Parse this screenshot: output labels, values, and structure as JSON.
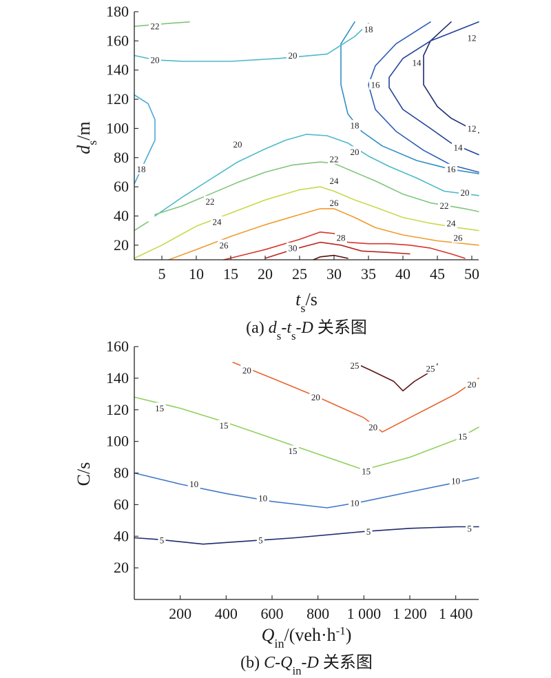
{
  "chart_data": [
    {
      "type": "contour",
      "xlabel": "t_s/s",
      "ylabel": "d_s/m",
      "caption": "(a) d_s-t_s-D 关系图",
      "xlim": [
        1,
        51
      ],
      "ylim": [
        10,
        180
      ],
      "x_ticks": [
        "5",
        "10",
        "15",
        "20",
        "25",
        "30",
        "35",
        "40",
        "45",
        "50"
      ],
      "y_ticks": [
        "20",
        "40",
        "60",
        "80",
        "100",
        "120",
        "140",
        "160",
        "180"
      ],
      "levels": [
        {
          "level": "12",
          "color": "#1d2a6e",
          "lines": [
            [
              [
                47,
                173
              ],
              [
                44,
                160
              ],
              [
                43,
                150
              ],
              [
                43,
                130
              ],
              [
                45,
                115
              ],
              [
                47,
                107
              ],
              [
                51,
                97
              ]
            ]
          ],
          "labels": [
            [
              50,
              162
            ],
            [
              50,
              100
            ]
          ]
        },
        {
          "level": "14",
          "color": "#23409a",
          "lines": [
            [
              [
                51,
                173
              ],
              [
                44,
                160
              ],
              [
                40,
                148
              ],
              [
                38,
                135
              ],
              [
                38,
                128
              ],
              [
                40,
                113
              ],
              [
                44,
                100
              ],
              [
                47,
                90
              ],
              [
                51,
                82
              ]
            ]
          ],
          "labels": [
            [
              42,
              145
            ],
            [
              48,
              87
            ]
          ]
        },
        {
          "level": "16",
          "color": "#2c5fb6",
          "lines": [
            [
              [
                44,
                173
              ],
              [
                39,
                158
              ],
              [
                36,
                143
              ],
              [
                35,
                130
              ],
              [
                36,
                113
              ],
              [
                39,
                98
              ],
              [
                43,
                85
              ],
              [
                47,
                75
              ],
              [
                51,
                70
              ]
            ]
          ],
          "labels": [
            [
              36,
              130
            ],
            [
              47,
              72
            ]
          ]
        },
        {
          "level": "18",
          "color": "#2f8fc4",
          "lines": [
            [
              [
                33,
                173
              ],
              [
                31,
                158
              ],
              [
                31,
                145
              ],
              [
                31,
                130
              ],
              [
                32,
                110
              ],
              [
                34,
                98
              ],
              [
                37,
                88
              ],
              [
                42,
                78
              ],
              [
                47,
                72
              ],
              [
                51,
                69
              ]
            ]
          ],
          "labels": [
            [
              35,
              168
            ],
            [
              33,
              102
            ]
          ]
        },
        {
          "level": "18",
          "color": "#4aa9d6",
          "lines": [
            [
              [
                1,
                123
              ],
              [
                3,
                117
              ],
              [
                4,
                106
              ],
              [
                4,
                92
              ],
              [
                3,
                82
              ],
              [
                1,
                62
              ]
            ]
          ],
          "labels": [
            [
              2,
              72
            ]
          ]
        },
        {
          "level": "20",
          "color": "#4cb9c9",
          "lines": [
            [
              [
                1,
                150
              ],
              [
                4,
                147
              ],
              [
                8,
                146
              ],
              [
                15,
                146
              ],
              [
                22,
                148
              ],
              [
                29,
                151
              ],
              [
                31,
                157
              ],
              [
                33,
                163
              ],
              [
                35,
                172
              ]
            ]
          ],
          "labels": [
            [
              4,
              147
            ],
            [
              24,
              150
            ]
          ]
        },
        {
          "level": "20",
          "color": "#4cb9c9",
          "lines": [
            [
              [
                4,
                40
              ],
              [
                8,
                53
              ],
              [
                12,
                65
              ],
              [
                16,
                77
              ],
              [
                20,
                86
              ],
              [
                23,
                92
              ],
              [
                26,
                96
              ],
              [
                29,
                95
              ],
              [
                32,
                90
              ],
              [
                35,
                81
              ],
              [
                38,
                74
              ],
              [
                42,
                66
              ],
              [
                46,
                57
              ],
              [
                51,
                54
              ]
            ]
          ],
          "labels": [
            [
              16,
              89
            ],
            [
              33,
              84
            ],
            [
              49,
              56
            ]
          ]
        },
        {
          "level": "22",
          "color": "#7ec57a",
          "lines": [
            [
              [
                1,
                170
              ],
              [
                6,
                172
              ],
              [
                9,
                173
              ]
            ]
          ],
          "labels": [
            [
              4,
              170
            ]
          ]
        },
        {
          "level": "22",
          "color": "#7ec57a",
          "lines": [
            [
              [
                1,
                30
              ],
              [
                3,
                36
              ]
            ],
            [
              [
                4,
                41
              ],
              [
                8,
                47
              ],
              [
                12,
                55
              ],
              [
                16,
                63
              ],
              [
                20,
                70
              ],
              [
                24,
                75
              ],
              [
                28,
                77
              ],
              [
                30,
                76
              ],
              [
                32,
                72
              ],
              [
                34,
                68
              ],
              [
                36,
                64
              ],
              [
                40,
                55
              ],
              [
                44,
                49
              ],
              [
                49,
                45
              ],
              [
                51,
                43
              ]
            ]
          ],
          "labels": [
            [
              12,
              50
            ],
            [
              30,
              79
            ],
            [
              46,
              47
            ]
          ]
        },
        {
          "level": "24",
          "color": "#c9d84a",
          "lines": [
            [
              [
                1,
                11
              ],
              [
                5,
                20
              ],
              [
                10,
                33
              ],
              [
                15,
                42
              ],
              [
                20,
                51
              ],
              [
                25,
                58
              ],
              [
                28,
                60
              ],
              [
                30,
                57
              ],
              [
                33,
                51
              ],
              [
                36,
                46
              ],
              [
                40,
                39
              ],
              [
                44,
                35
              ],
              [
                48,
                32
              ],
              [
                51,
                30
              ]
            ]
          ],
          "labels": [
            [
              13,
              36
            ],
            [
              30,
              64
            ],
            [
              47,
              35
            ]
          ]
        },
        {
          "level": "26",
          "color": "#f09a2c",
          "lines": [
            [
              [
                6,
                10
              ],
              [
                10,
                17
              ],
              [
                15,
                26
              ],
              [
                20,
                34
              ],
              [
                25,
                41
              ],
              [
                28,
                45
              ],
              [
                30,
                45
              ],
              [
                33,
                39
              ],
              [
                36,
                32
              ],
              [
                40,
                27
              ],
              [
                45,
                23
              ],
              [
                51,
                20
              ]
            ]
          ],
          "labels": [
            [
              14,
              20
            ],
            [
              30,
              49
            ],
            [
              48,
              25
            ]
          ]
        },
        {
          "level": "28",
          "color": "#d8342a",
          "lines": [
            [
              [
                14,
                10
              ],
              [
                20,
                17
              ],
              [
                25,
                24
              ],
              [
                28,
                29
              ],
              [
                30,
                28
              ],
              [
                32,
                22
              ],
              [
                35,
                21
              ],
              [
                38,
                21
              ],
              [
                41,
                20
              ],
              [
                44,
                18
              ],
              [
                47,
                14
              ],
              [
                49,
                11
              ]
            ]
          ],
          "labels": [
            [
              31,
              25
            ]
          ]
        },
        {
          "level": "30",
          "color": "#b8241e",
          "lines": [
            [
              [
                20,
                11
              ],
              [
                24,
                17
              ],
              [
                28,
                22
              ],
              [
                31,
                20
              ],
              [
                34,
                16
              ],
              [
                38,
                15
              ],
              [
                41,
                14
              ]
            ]
          ],
          "labels": [
            [
              24,
              18
            ]
          ]
        },
        {
          "level": "",
          "color": "#5c0d0d",
          "lines": [
            [
              [
                27,
                10
              ],
              [
                28,
                12
              ],
              [
                30,
                13
              ],
              [
                32,
                11
              ]
            ]
          ],
          "labels": []
        }
      ]
    },
    {
      "type": "contour",
      "xlabel": "Q_in/(veh·h^-1)",
      "ylabel": "C/s",
      "caption": "(b) C-Q_in-D 关系图",
      "xlim": [
        0,
        1500
      ],
      "ylim": [
        0,
        160
      ],
      "x_ticks": [
        "200",
        "400",
        "600",
        "800",
        "1 000",
        "1 200",
        "1 400"
      ],
      "y_ticks": [
        "20",
        "40",
        "60",
        "80",
        "100",
        "120",
        "140",
        "160"
      ],
      "levels": [
        {
          "level": "5",
          "color": "#1d2a6e",
          "lines": [
            [
              [
                0,
                39
              ],
              [
                100,
                38
              ],
              [
                300,
                35
              ],
              [
                500,
                37
              ],
              [
                700,
                39
              ],
              [
                1000,
                43
              ],
              [
                1200,
                45
              ],
              [
                1400,
                46
              ],
              [
                1500,
                46
              ]
            ]
          ],
          "labels": [
            [
              120,
              37.5
            ],
            [
              550,
              37.5
            ],
            [
              1020,
              43
            ],
            [
              1460,
              45
            ]
          ]
        },
        {
          "level": "10",
          "color": "#3f78c8",
          "lines": [
            [
              [
                0,
                80
              ],
              [
                200,
                73
              ],
              [
                400,
                67
              ],
              [
                600,
                62
              ],
              [
                840,
                58
              ],
              [
                1000,
                62
              ],
              [
                1200,
                68
              ],
              [
                1400,
                74
              ],
              [
                1500,
                77
              ]
            ]
          ],
          "labels": [
            [
              260,
              73
            ],
            [
              560,
              64
            ],
            [
              960,
              61
            ],
            [
              1400,
              75
            ]
          ]
        },
        {
          "level": "15",
          "color": "#8fd05a",
          "lines": [
            [
              [
                0,
                128
              ],
              [
                200,
                121
              ],
              [
                400,
                112
              ],
              [
                600,
                102
              ],
              [
                800,
                92
              ],
              [
                1000,
                82
              ],
              [
                1200,
                90
              ],
              [
                1400,
                101
              ],
              [
                1500,
                109
              ]
            ]
          ],
          "labels": [
            [
              110,
              121
            ],
            [
              390,
              110
            ],
            [
              690,
              94
            ],
            [
              1010,
              81
            ],
            [
              1430,
              103
            ]
          ]
        },
        {
          "level": "20",
          "color": "#e8642a",
          "lines": [
            [
              [
                430,
                150
              ],
              [
                600,
                140
              ],
              [
                800,
                128
              ],
              [
                1000,
                115
              ],
              [
                1080,
                106
              ],
              [
                1200,
                115
              ],
              [
                1400,
                130
              ],
              [
                1500,
                140
              ]
            ]
          ],
          "labels": [
            [
              490,
              145
            ],
            [
              790,
              128
            ],
            [
              1040,
              109
            ],
            [
              1470,
              136
            ]
          ]
        },
        {
          "level": "25",
          "color": "#5c1414",
          "lines": [
            [
              [
                940,
                151
              ],
              [
                1030,
                145
              ],
              [
                1130,
                138
              ],
              [
                1170,
                132
              ],
              [
                1220,
                138
              ],
              [
                1300,
                145
              ],
              [
                1320,
                149
              ]
            ]
          ],
          "labels": [
            [
              960,
              148
            ],
            [
              1290,
              146
            ]
          ]
        }
      ]
    }
  ]
}
